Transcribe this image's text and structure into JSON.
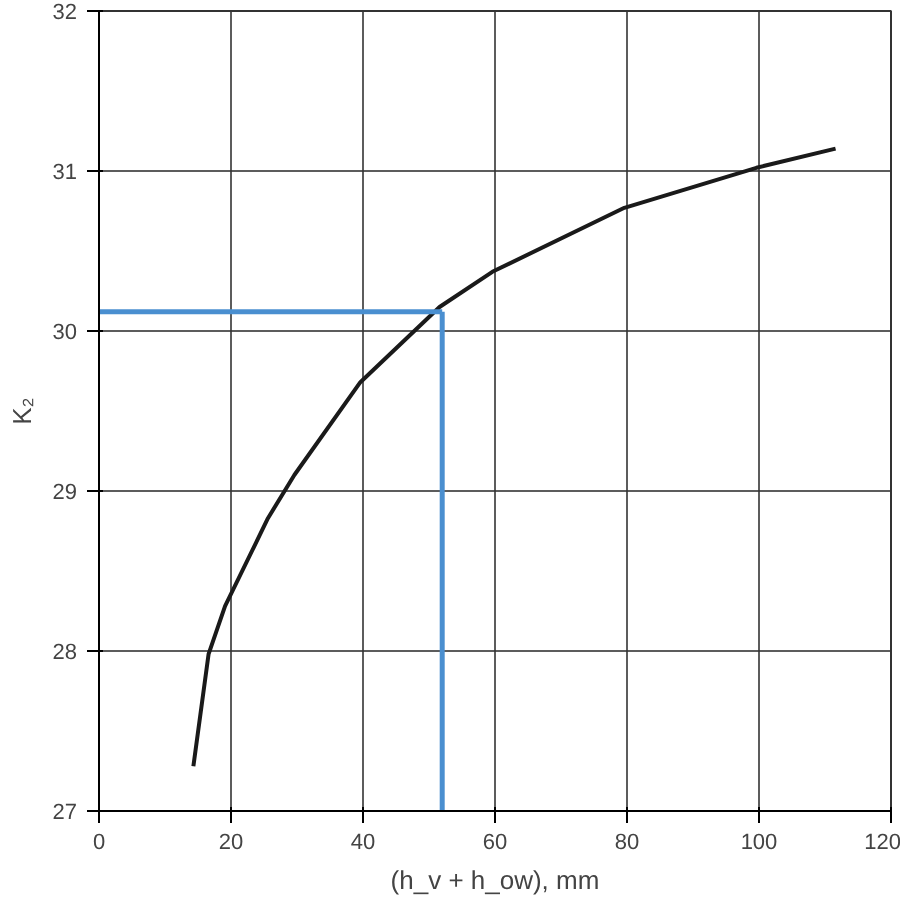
{
  "chart_data": {
    "type": "line",
    "xlabel": "(h_v + h_ow), mm",
    "ylabel": "K₂",
    "x": [
      14.3,
      16.6,
      19.1,
      25.6,
      29.6,
      39.6,
      51.6,
      59.6,
      79.6,
      99.6,
      111.6
    ],
    "series": [
      {
        "color": "#1a1a1a",
        "values": [
          27.28,
          27.98,
          28.28,
          28.83,
          29.1,
          29.68,
          30.15,
          30.37,
          30.77,
          31.02,
          31.14
        ]
      }
    ],
    "xlim": [
      0,
      120
    ],
    "ylim": [
      27,
      32
    ],
    "xticks": [
      0,
      20,
      40,
      60,
      80,
      100,
      120
    ],
    "yticks": [
      27,
      28,
      29,
      30,
      31,
      32
    ],
    "grid": true,
    "ref_lines": [
      {
        "axis": "x",
        "value": 52,
        "color": "#4a8fd0"
      },
      {
        "axis": "y",
        "value": 30.12,
        "color": "#4a8fd0"
      }
    ]
  }
}
